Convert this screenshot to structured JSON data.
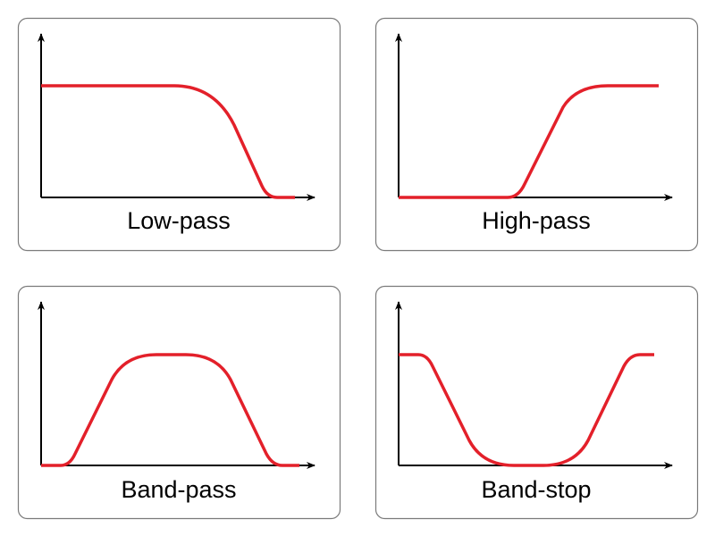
{
  "panels": [
    {
      "label": "Low-pass"
    },
    {
      "label": "High-pass"
    },
    {
      "label": "Band-pass"
    },
    {
      "label": "Band-stop"
    }
  ],
  "colors": {
    "curve": "#e3202a",
    "axis": "#000000",
    "border": "#7a7a7a"
  }
}
